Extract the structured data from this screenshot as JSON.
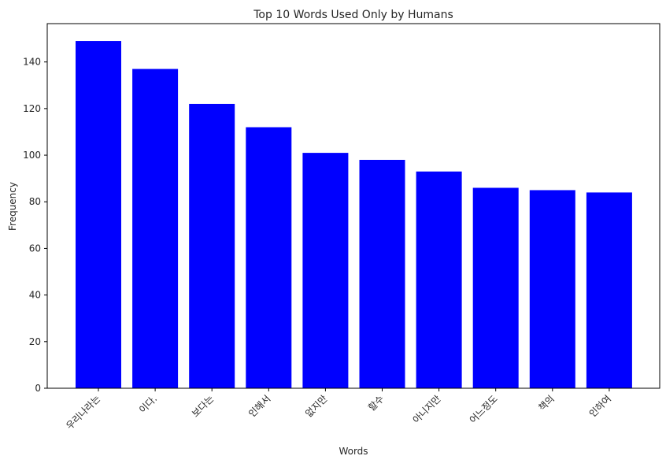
{
  "chart_data": {
    "type": "bar",
    "title": "Top 10 Words Used Only by Humans",
    "xlabel": "Words",
    "ylabel": "Frequency",
    "categories": [
      "우리나라는",
      "이다.",
      "보다는",
      "인해서",
      "없지만",
      "할수",
      "아니지만",
      "어느정도",
      "책의",
      "인하여"
    ],
    "values": [
      149,
      137,
      122,
      112,
      101,
      98,
      93,
      86,
      85,
      84
    ],
    "ylim": [
      0,
      156.45
    ],
    "yticks": [
      0,
      20,
      40,
      60,
      80,
      100,
      120,
      140
    ],
    "bar_color": "#0000ff",
    "grid": false,
    "legend": "none"
  }
}
